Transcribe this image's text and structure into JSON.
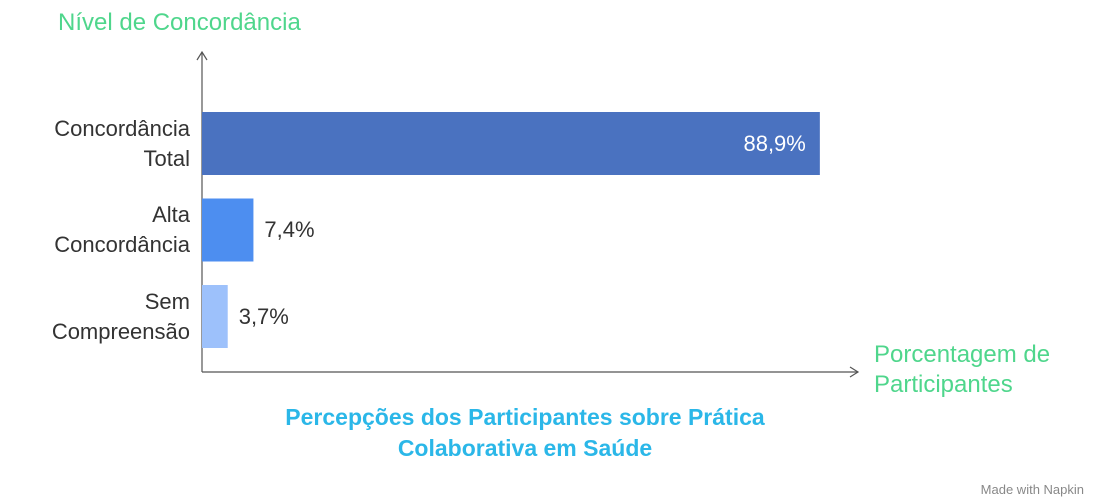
{
  "chart_data": {
    "type": "bar",
    "orientation": "horizontal",
    "title": "Percepções dos Participantes sobre Prática Colaborativa em Saúde",
    "y_label": "Nível de Concordância",
    "x_label": "Porcentagem de Participantes",
    "categories": [
      "Concordância Total",
      "Alta Concordância",
      "Sem Compreensão"
    ],
    "values": [
      88.9,
      7.4,
      3.7
    ],
    "value_labels": [
      "88,9%",
      "7,4%",
      "3,7%"
    ],
    "colors": [
      "#4a72c0",
      "#4d8ef0",
      "#9dc1fb"
    ],
    "xlim": [
      0,
      100
    ],
    "footer": "Made with Napkin"
  }
}
